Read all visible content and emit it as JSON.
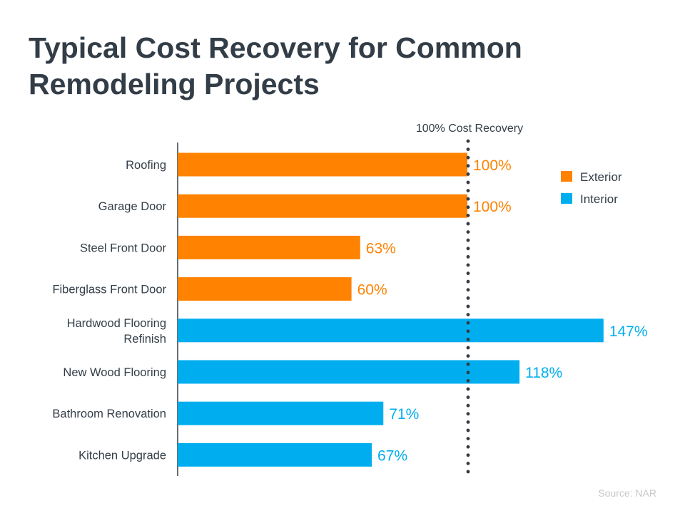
{
  "title_line1": "Typical Cost Recovery for Common",
  "title_line2": "Remodeling Projects",
  "source": "Source: NAR",
  "colors": {
    "Exterior": "#FF8200",
    "Interior": "#00AEEF",
    "text": "#333d47"
  },
  "chart_data": {
    "type": "bar",
    "orientation": "horizontal",
    "title": "Typical Cost Recovery for Common Remodeling Projects",
    "categories": [
      "Roofing",
      "Garage Door",
      "Steel Front Door",
      "Fiberglass Front Door",
      "Hardwood Flooring Refinish",
      "New Wood Flooring",
      "Bathroom Renovation",
      "Kitchen Upgrade"
    ],
    "category_lines": [
      [
        "Roofing"
      ],
      [
        "Garage Door"
      ],
      [
        "Steel Front Door"
      ],
      [
        "Fiberglass Front Door"
      ],
      [
        "Hardwood Flooring",
        "Refinish"
      ],
      [
        "New Wood Flooring"
      ],
      [
        "Bathroom Renovation"
      ],
      [
        "Kitchen Upgrade"
      ]
    ],
    "values": [
      100,
      100,
      63,
      60,
      147,
      118,
      71,
      67
    ],
    "groups": [
      "Exterior",
      "Exterior",
      "Exterior",
      "Exterior",
      "Interior",
      "Interior",
      "Interior",
      "Interior"
    ],
    "data_labels": [
      "100%",
      "100%",
      "63%",
      "60%",
      "147%",
      "118%",
      "71%",
      "67%"
    ],
    "legend": {
      "entries": [
        "Exterior",
        "Interior"
      ],
      "position": "top-right"
    },
    "reference_line": {
      "value": 100,
      "label": "100% Cost Recovery"
    },
    "xlim": [
      0,
      150
    ],
    "grid": false
  }
}
